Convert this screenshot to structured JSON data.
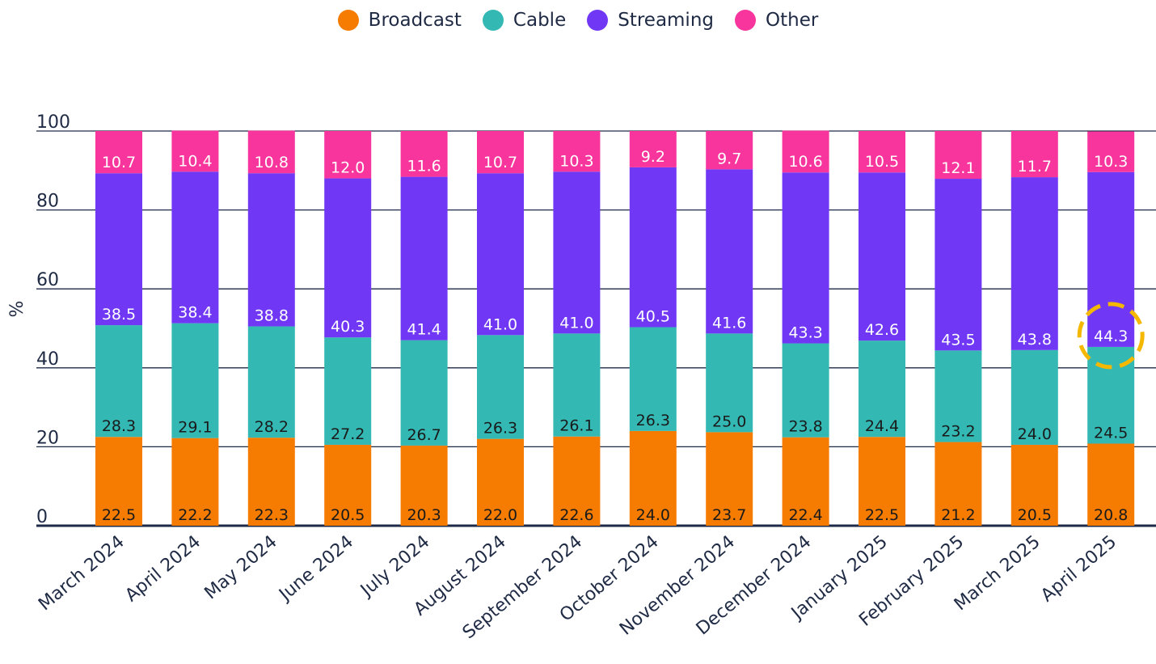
{
  "chart_data": {
    "type": "bar",
    "stacked": true,
    "title": "",
    "xlabel": "",
    "ylabel": "%",
    "ylim": [
      0,
      100
    ],
    "yticks": [
      0,
      20,
      40,
      60,
      80,
      100
    ],
    "grid": true,
    "legend_position": "top-center",
    "categories": [
      "March 2024",
      "April 2024",
      "May 2024",
      "June 2024",
      "July 2024",
      "August 2024",
      "September 2024",
      "October 2024",
      "November 2024",
      "December 2024",
      "January 2025",
      "February 2025",
      "March 2025",
      "April 2025"
    ],
    "series": [
      {
        "name": "Broadcast",
        "color": "#f57c00",
        "label_color": "#1a1a1a",
        "values": [
          22.5,
          22.2,
          22.3,
          20.5,
          20.3,
          22.0,
          22.6,
          24.0,
          23.7,
          22.4,
          22.5,
          21.2,
          20.5,
          20.8
        ]
      },
      {
        "name": "Cable",
        "color": "#33b8b4",
        "label_color": "#1a1a1a",
        "values": [
          28.3,
          29.1,
          28.2,
          27.2,
          26.7,
          26.3,
          26.1,
          26.3,
          25.0,
          23.8,
          24.4,
          23.2,
          24.0,
          24.5
        ]
      },
      {
        "name": "Streaming",
        "color": "#7038f5",
        "label_color": "#ffffff",
        "values": [
          38.5,
          38.4,
          38.8,
          40.3,
          41.4,
          41.0,
          41.0,
          40.5,
          41.6,
          43.3,
          42.6,
          43.5,
          43.8,
          44.3
        ]
      },
      {
        "name": "Other",
        "color": "#f7359c",
        "label_color": "#ffffff",
        "values": [
          10.7,
          10.4,
          10.8,
          12.0,
          11.6,
          10.7,
          10.3,
          9.2,
          9.7,
          10.6,
          10.5,
          12.1,
          11.7,
          10.3
        ]
      }
    ],
    "annotations": [
      {
        "type": "dashed-circle",
        "category": "April 2025",
        "series": "Streaming",
        "value": 44.3,
        "color": "#f5b800"
      }
    ]
  }
}
